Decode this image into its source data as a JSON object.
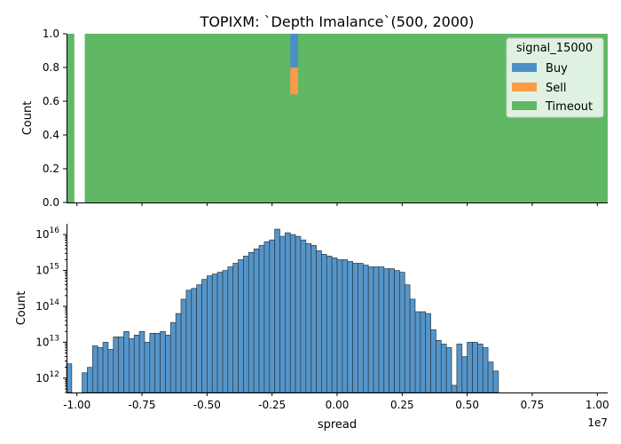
{
  "colors": {
    "buy": "#4c8fc6",
    "sell": "#fb9b45",
    "timeout": "#60b865",
    "bar_edge": "#2d3b45"
  },
  "chart_data": [
    {
      "type": "bar",
      "title": "TOPIXM: `Depth Imalance`(500, 2000)",
      "ylabel": "Count",
      "xlim": [
        -10400000,
        10400000
      ],
      "ylim": [
        0,
        1.0
      ],
      "yticks": [
        "0.0",
        "0.2",
        "0.4",
        "0.6",
        "0.8",
        "1.0"
      ],
      "stacked_proportion": true,
      "legend": {
        "title": "signal_15000",
        "placement": "top-right",
        "entries": [
          "Buy",
          "Sell",
          "Timeout"
        ]
      },
      "segments": [
        {
          "series": "Timeout",
          "x0": -10400000,
          "x1": -10100000,
          "y0": 0,
          "y1": 1.0
        },
        {
          "series": "Timeout",
          "x0": -9700000,
          "x1": 10400000,
          "y0": 0,
          "y1": 1.0
        },
        {
          "series": "Buy",
          "x0": -1800000,
          "x1": -1500000,
          "y0": 0.64,
          "y1": 1.0
        },
        {
          "series": "Sell",
          "x0": -1800000,
          "x1": -1500000,
          "y0": 0.64,
          "y1": 0.8
        }
      ]
    },
    {
      "type": "bar",
      "xlabel": "spread",
      "ylabel": "Count",
      "x_offset_label": "1e7",
      "xlim": [
        -1.04,
        1.04
      ],
      "xticks": [
        "-1.00",
        "-0.75",
        "-0.50",
        "-0.25",
        "0.00",
        "0.25",
        "0.50",
        "0.75",
        "1.00"
      ],
      "yscale": "log",
      "ylim_log10": [
        11.6,
        16.3
      ],
      "yticks": [
        "10^12",
        "10^13",
        "10^14",
        "10^15",
        "10^16"
      ],
      "bin_start": -1.04,
      "bin_width": 0.02,
      "log10_counts": [
        12.4,
        null,
        null,
        12.15,
        12.3,
        12.9,
        12.85,
        13.0,
        12.8,
        13.15,
        13.15,
        13.3,
        13.1,
        13.2,
        13.3,
        13.0,
        13.25,
        13.25,
        13.3,
        13.2,
        13.55,
        13.8,
        14.2,
        14.45,
        14.5,
        14.6,
        14.75,
        14.85,
        14.9,
        14.95,
        15.0,
        15.1,
        15.2,
        15.3,
        15.4,
        15.5,
        15.6,
        15.7,
        15.8,
        15.85,
        16.15,
        15.95,
        16.05,
        16.0,
        15.95,
        15.85,
        15.75,
        15.7,
        15.55,
        15.45,
        15.4,
        15.35,
        15.3,
        15.3,
        15.25,
        15.2,
        15.2,
        15.15,
        15.1,
        15.1,
        15.1,
        15.05,
        15.05,
        15.0,
        14.95,
        14.6,
        14.2,
        13.85,
        13.85,
        13.8,
        13.35,
        13.05,
        12.95,
        12.85,
        11.8,
        12.95,
        12.6,
        13.0,
        13.0,
        12.95,
        12.85,
        12.45,
        12.2
      ]
    }
  ]
}
